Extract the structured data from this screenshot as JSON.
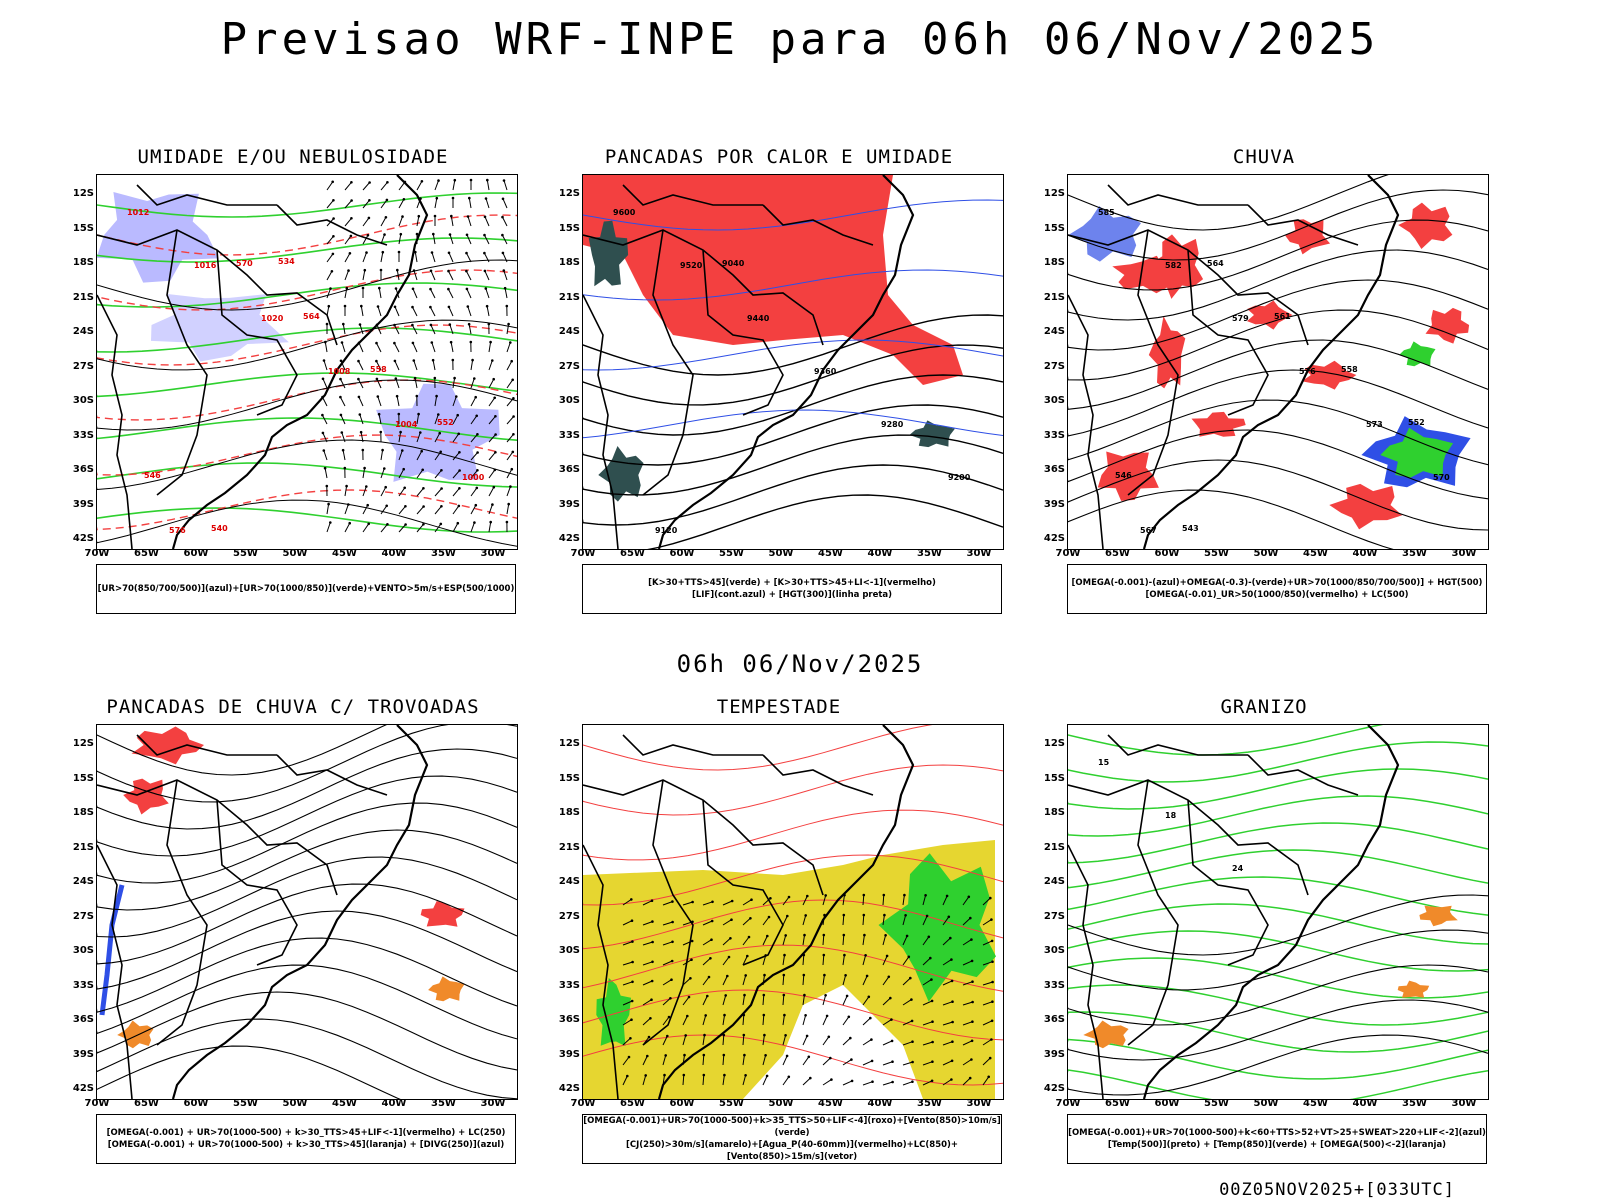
{
  "main_title": "Previsao WRF-INPE  para 06h 06/Nov/2025",
  "mid_title": "06h 06/Nov/2025",
  "footer": "00Z05NOV2025+[033UTC]",
  "lat_labels": [
    "12S",
    "15S",
    "18S",
    "21S",
    "24S",
    "27S",
    "30S",
    "33S",
    "36S",
    "39S",
    "42S"
  ],
  "lon_labels": [
    "70W",
    "65W",
    "60W",
    "55W",
    "50W",
    "45W",
    "40W",
    "35W",
    "30W"
  ],
  "colors": {
    "red": "#f34040",
    "green": "#2fd02f",
    "blue": "#2f4fe6",
    "lavender": "#b3b3ff",
    "yellow": "#e6d630",
    "orange": "#f08a2a",
    "darkteal": "#2f4f4f"
  },
  "panels": [
    {
      "id": "umidade",
      "title": "UMIDADE E/OU NEBULOSIDADE",
      "legend": [
        "[UR>70(850/700/500)](azul)+[UR>70(1000/850)](verde)+VENTO>5m/s+ESP(500/1000)"
      ]
    },
    {
      "id": "pancadas-calor",
      "title": "PANCADAS POR CALOR E UMIDADE",
      "legend": [
        "[K>30+TTS>45](verde) + [K>30+TTS>45+LI<-1](vermelho)",
        "[LIF](cont.azul) + [HGT(300)](linha preta)"
      ]
    },
    {
      "id": "chuva",
      "title": "CHUVA",
      "legend": [
        "[OMEGA(-0.001)-(azul)+OMEGA(-0.3)-(verde)+UR>70(1000/850/700/500)] + HGT(500)",
        "[OMEGA(-0.01)_UR>50(1000/850)(vermelho) + LC(500)"
      ]
    },
    {
      "id": "pancadas-trovoadas",
      "title": "PANCADAS DE CHUVA C/ TROVOADAS",
      "legend": [
        "[OMEGA(-0.001) + UR>70(1000-500) + k>30_TTS>45+LIF<-1](vermelho) + LC(250)",
        "[OMEGA(-0.001) + UR>70(1000-500) + k>30_TTS>45](laranja) + [DIVG(250)](azul)"
      ]
    },
    {
      "id": "tempestade",
      "title": "TEMPESTADE",
      "legend": [
        "[OMEGA(-0.001)+UR>70(1000-500)+k>35_TTS>50+LIF<-4](roxo)+[Vento(850)>10m/s](verde)",
        "[CJ(250)>30m/s](amarelo)+[Agua_P(40-60mm)](vermelho)+LC(850)+[Vento(850)>15m/s](vetor)"
      ]
    },
    {
      "id": "granizo",
      "title": "GRANIZO",
      "legend": [
        "[OMEGA(-0.001)+UR>70(1000-500)+k<60+TTS>52+VT>25+SWEAT>220+LIF<-2](azul)",
        "[Temp(500)](preto) + [Temp(850)](verde) + [OMEGA(500)<-2](laranja)"
      ]
    }
  ],
  "contour_labels": {
    "umidade": [
      "1012",
      "1016",
      "1020",
      "1008",
      "1004",
      "1000",
      "576",
      "570",
      "564",
      "558",
      "552",
      "546",
      "540",
      "534"
    ],
    "pancadas-calor": [
      "9600",
      "9520",
      "9440",
      "9360",
      "9280",
      "9200",
      "9120",
      "9040"
    ],
    "chuva": [
      "585",
      "582",
      "579",
      "576",
      "573",
      "570",
      "567",
      "564",
      "561",
      "558",
      "552",
      "546",
      "543"
    ],
    "granizo": [
      "15",
      "18",
      "24"
    ]
  }
}
